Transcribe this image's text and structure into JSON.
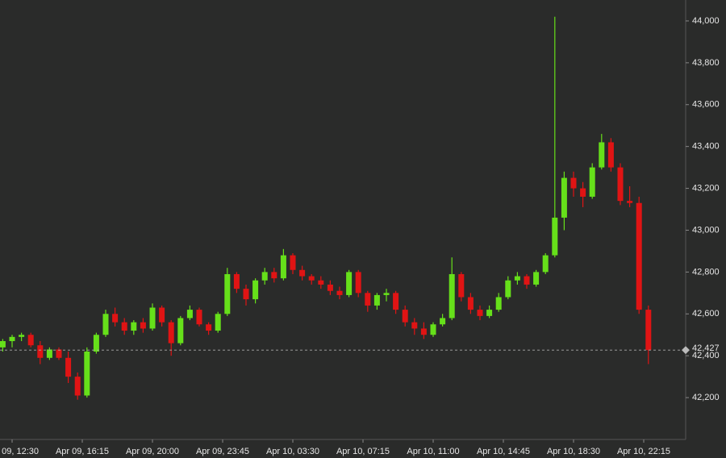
{
  "chart_data": {
    "type": "candlestick",
    "x": [
      "Apr 09, 12:00",
      "Apr 09, 12:30",
      "Apr 09, 13:00",
      "Apr 09, 13:30",
      "Apr 09, 14:00",
      "Apr 09, 14:30",
      "Apr 09, 15:00",
      "Apr 09, 15:30",
      "Apr 09, 16:00",
      "Apr 09, 16:30",
      "Apr 09, 17:00",
      "Apr 09, 17:30",
      "Apr 09, 18:00",
      "Apr 09, 18:30",
      "Apr 09, 19:00",
      "Apr 09, 19:30",
      "Apr 09, 20:00",
      "Apr 09, 20:30",
      "Apr 09, 21:00",
      "Apr 09, 21:30",
      "Apr 09, 22:00",
      "Apr 09, 22:30",
      "Apr 09, 23:00",
      "Apr 09, 23:30",
      "Apr 10, 00:00",
      "Apr 10, 00:30",
      "Apr 10, 01:00",
      "Apr 10, 01:30",
      "Apr 10, 02:00",
      "Apr 10, 02:30",
      "Apr 10, 03:00",
      "Apr 10, 03:30",
      "Apr 10, 04:00",
      "Apr 10, 04:30",
      "Apr 10, 05:00",
      "Apr 10, 05:30",
      "Apr 10, 06:00",
      "Apr 10, 06:30",
      "Apr 10, 07:00",
      "Apr 10, 07:30",
      "Apr 10, 08:00",
      "Apr 10, 08:30",
      "Apr 10, 09:00",
      "Apr 10, 09:30",
      "Apr 10, 10:00",
      "Apr 10, 10:30",
      "Apr 10, 11:00",
      "Apr 10, 11:30",
      "Apr 10, 12:00",
      "Apr 10, 12:30",
      "Apr 10, 13:00",
      "Apr 10, 13:30",
      "Apr 10, 14:00",
      "Apr 10, 14:30",
      "Apr 10, 15:00",
      "Apr 10, 15:30",
      "Apr 10, 16:00",
      "Apr 10, 16:30",
      "Apr 10, 17:00",
      "Apr 10, 17:30",
      "Apr 10, 18:00",
      "Apr 10, 18:30",
      "Apr 10, 19:00",
      "Apr 10, 19:30",
      "Apr 10, 20:00",
      "Apr 10, 20:30",
      "Apr 10, 21:00",
      "Apr 10, 21:30",
      "Apr 10, 22:00",
      "Apr 10, 22:30"
    ],
    "open": [
      42440,
      42470,
      42490,
      42500,
      42450,
      42390,
      42430,
      42390,
      42300,
      42210,
      42420,
      42500,
      42600,
      42560,
      42520,
      42560,
      42530,
      42630,
      42560,
      42460,
      42580,
      42620,
      42550,
      42520,
      42600,
      42790,
      42720,
      42670,
      42760,
      42800,
      42770,
      42880,
      42810,
      42780,
      42760,
      42740,
      42710,
      42690,
      42800,
      42700,
      42640,
      42690,
      42700,
      42620,
      42560,
      42530,
      42500,
      42550,
      42580,
      42790,
      42680,
      42620,
      42590,
      42620,
      42680,
      42760,
      42780,
      42740,
      42800,
      42880,
      43060,
      43250,
      43200,
      43160,
      43300,
      43420,
      43300,
      43140,
      43130,
      42620
    ],
    "high": [
      42480,
      42500,
      42510,
      42510,
      42470,
      42440,
      42440,
      42420,
      42320,
      42440,
      42510,
      42620,
      42630,
      42580,
      42570,
      42580,
      42650,
      42640,
      42570,
      42590,
      42640,
      42630,
      42560,
      42610,
      42820,
      42800,
      42740,
      42770,
      42820,
      42820,
      42910,
      42890,
      42830,
      42790,
      42780,
      42760,
      42730,
      42810,
      42810,
      42710,
      42700,
      42720,
      42710,
      42640,
      42580,
      42560,
      42560,
      42600,
      42870,
      42800,
      42700,
      42640,
      42640,
      42700,
      42780,
      42800,
      42790,
      42810,
      42890,
      44020,
      43280,
      43280,
      43230,
      43320,
      43460,
      43440,
      43320,
      43210,
      43160,
      42640
    ],
    "low": [
      42420,
      42440,
      42470,
      42440,
      42360,
      42380,
      42380,
      42270,
      42190,
      42200,
      42410,
      42490,
      42540,
      42500,
      42500,
      42510,
      42520,
      42540,
      42400,
      42450,
      42570,
      42540,
      42500,
      42510,
      42590,
      42700,
      42640,
      42650,
      42740,
      42750,
      42760,
      42790,
      42760,
      42740,
      42720,
      42690,
      42670,
      42680,
      42680,
      42610,
      42620,
      42660,
      42600,
      42540,
      42500,
      42480,
      42490,
      42540,
      42570,
      42660,
      42600,
      42570,
      42580,
      42610,
      42670,
      42740,
      42720,
      42730,
      42790,
      42870,
      43000,
      43160,
      43110,
      43150,
      43290,
      43280,
      43120,
      43110,
      42600,
      42360
    ],
    "close": [
      42470,
      42490,
      42500,
      42450,
      42390,
      42430,
      42390,
      42300,
      42210,
      42420,
      42500,
      42600,
      42560,
      42520,
      42560,
      42530,
      42630,
      42560,
      42460,
      42580,
      42620,
      42550,
      42520,
      42600,
      42790,
      42720,
      42670,
      42760,
      42800,
      42770,
      42880,
      42810,
      42780,
      42760,
      42740,
      42710,
      42690,
      42800,
      42700,
      42640,
      42690,
      42700,
      42620,
      42560,
      42530,
      42500,
      42550,
      42580,
      42790,
      42680,
      42620,
      42590,
      42620,
      42680,
      42760,
      42780,
      42740,
      42800,
      42880,
      43060,
      43250,
      43200,
      43160,
      43300,
      43420,
      43300,
      43140,
      43130,
      42620,
      42427
    ],
    "up_color": "#66e01a",
    "down_color": "#e01414",
    "xticks": [
      "Apr 09, 12:30",
      "Apr 09, 16:15",
      "Apr 09, 20:00",
      "Apr 09, 23:45",
      "Apr 10, 03:30",
      "Apr 10, 07:15",
      "Apr 10, 11:00",
      "Apr 10, 14:45",
      "Apr 10, 18:30",
      "Apr 10, 22:15"
    ],
    "ylim": [
      42000,
      44100
    ],
    "yticks": [
      {
        "value": 42200,
        "label": "42,200"
      },
      {
        "value": 42400,
        "label": "42,400"
      },
      {
        "value": 42600,
        "label": "42,600"
      },
      {
        "value": 42800,
        "label": "42,800"
      },
      {
        "value": 43000,
        "label": "43,000"
      },
      {
        "value": 43200,
        "label": "43,200"
      },
      {
        "value": 43400,
        "label": "43,400"
      },
      {
        "value": 43600,
        "label": "43,600"
      },
      {
        "value": 43800,
        "label": "43,800"
      },
      {
        "value": 44000,
        "label": "44,000"
      }
    ],
    "last_price": {
      "value": 42427,
      "label": "42,427"
    }
  }
}
